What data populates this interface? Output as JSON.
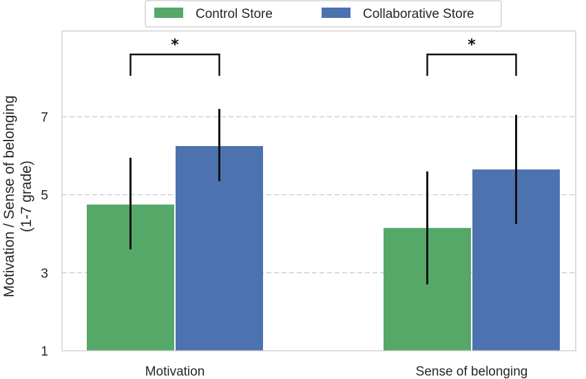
{
  "chart_data": {
    "type": "bar",
    "categories": [
      "Motivation",
      "Sense of belonging"
    ],
    "series": [
      {
        "name": "Control Store",
        "color": "#55a868",
        "values": [
          4.75,
          4.15
        ],
        "error_low": [
          3.6,
          2.7
        ],
        "error_high": [
          5.95,
          5.6
        ]
      },
      {
        "name": "Collaborative Store",
        "color": "#4c72b0",
        "values": [
          6.25,
          5.65
        ],
        "error_low": [
          5.35,
          4.25
        ],
        "error_high": [
          7.2,
          7.05
        ]
      }
    ],
    "ylabel_line1": "Motivation / Sense of belonging",
    "ylabel_line2": "(1-7 grade)",
    "yticks": [
      1,
      3,
      5,
      7
    ],
    "ylim": [
      1,
      9.2
    ],
    "grid": "y-dashed",
    "legend_position": "top-center",
    "significance": [
      {
        "category_index": 0,
        "label": "*"
      },
      {
        "category_index": 1,
        "label": "*"
      }
    ]
  }
}
